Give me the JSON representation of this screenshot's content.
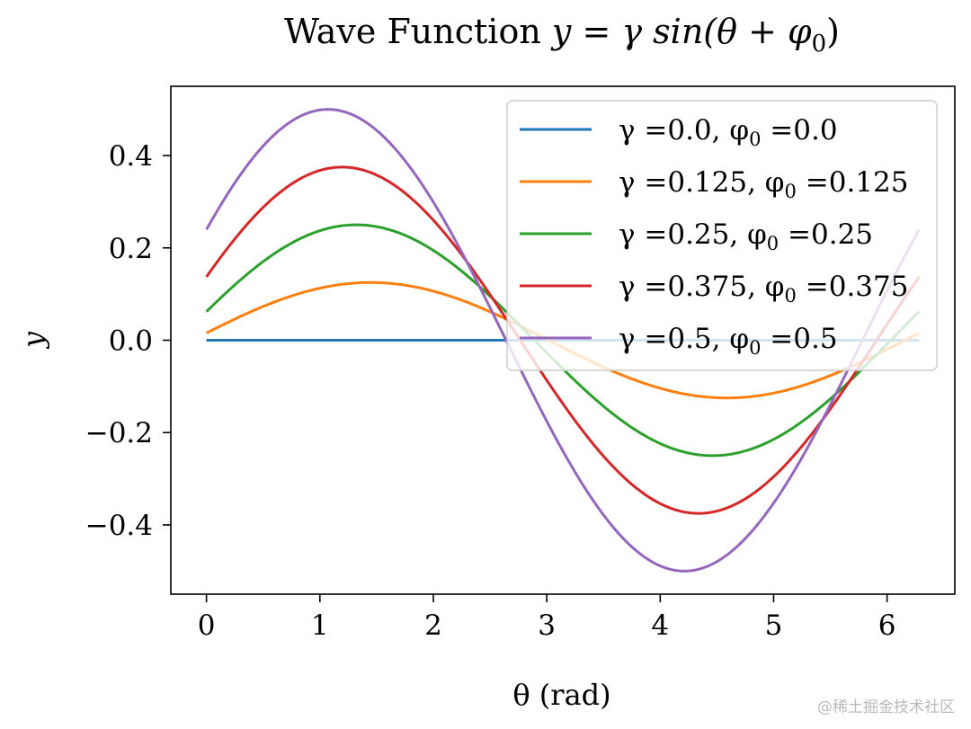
{
  "chart_data": {
    "type": "line",
    "title_text": "Wave Function ",
    "title_math": "y = γ sin(θ + φ",
    "title_sub": "0",
    "title_end": ")",
    "xlabel": "θ (rad)",
    "ylabel": "y",
    "xlim": [
      -0.31416,
      6.59734
    ],
    "ylim": [
      -0.55,
      0.55
    ],
    "x_ticks": [
      0,
      1,
      2,
      3,
      4,
      5,
      6
    ],
    "x_tick_labels": [
      "0",
      "1",
      "2",
      "3",
      "4",
      "5",
      "6"
    ],
    "y_ticks": [
      -0.4,
      -0.2,
      0.0,
      0.2,
      0.4
    ],
    "y_tick_labels": [
      "−0.4",
      "−0.2",
      "0.0",
      "0.2",
      "0.4"
    ],
    "x_range": [
      0,
      6.283185
    ],
    "function": "y = gamma * sin(theta + phi0)",
    "series": [
      {
        "name": "γ =0.0, φ0 =0.0",
        "gamma": 0.0,
        "phi0": 0.0,
        "color": "#1f77b4",
        "legend_pre": "γ =0.0, φ",
        "legend_sub": "0",
        "legend_post": " =0.0"
      },
      {
        "name": "γ =0.125, φ0 =0.125",
        "gamma": 0.125,
        "phi0": 0.125,
        "color": "#ff7f0e",
        "legend_pre": "γ =0.125, φ",
        "legend_sub": "0",
        "legend_post": " =0.125"
      },
      {
        "name": "γ =0.25, φ0 =0.25",
        "gamma": 0.25,
        "phi0": 0.25,
        "color": "#2ca02c",
        "legend_pre": "γ =0.25, φ",
        "legend_sub": "0",
        "legend_post": " =0.25"
      },
      {
        "name": "γ =0.375, φ0 =0.375",
        "gamma": 0.375,
        "phi0": 0.375,
        "color": "#d62728",
        "legend_pre": "γ =0.375, φ",
        "legend_sub": "0",
        "legend_post": " =0.375"
      },
      {
        "name": "γ =0.5, φ0 =0.5",
        "gamma": 0.5,
        "phi0": 0.5,
        "color": "#9467bd",
        "legend_pre": "γ =0.5, φ",
        "legend_sub": "0",
        "legend_post": " =0.5"
      }
    ],
    "legend_location": "upper-right",
    "grid": false
  },
  "watermark": "@稀土掘金技术社区"
}
